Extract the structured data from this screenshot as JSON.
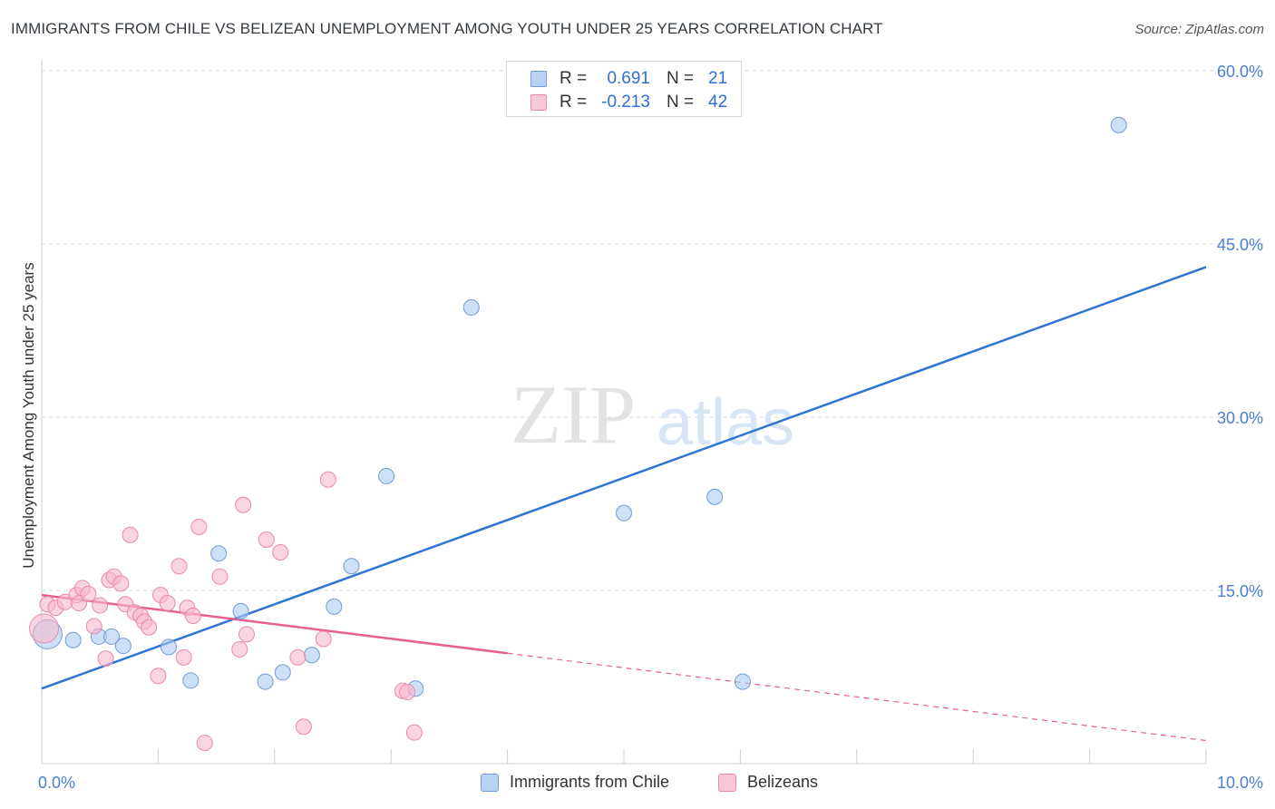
{
  "title": "IMMIGRANTS FROM CHILE VS BELIZEAN UNEMPLOYMENT AMONG YOUTH UNDER 25 YEARS CORRELATION CHART",
  "source": "Source: ZipAtlas.com",
  "watermark": {
    "zip": "ZIP",
    "atlas": "atlas"
  },
  "legend": {
    "r_label": "R =",
    "n_label": "N =",
    "series1": {
      "r": "0.691",
      "n": "21"
    },
    "series2": {
      "r": "-0.213",
      "n": "42"
    }
  },
  "colors": {
    "blue": "#2f73d6",
    "blue_fill": "#aecbf2",
    "pink": "#e8608f",
    "pink_fill": "#f6b8cc",
    "axis_text": "#4a7fd0",
    "grid": "#d9d9d9"
  },
  "chart_data": {
    "type": "scatter",
    "title": "IMMIGRANTS FROM CHILE VS BELIZEAN UNEMPLOYMENT AMONG YOUTH UNDER 25 YEARS CORRELATION CHART",
    "xlabel": "",
    "ylabel": "Unemployment Among Youth under 25 years",
    "xlim": [
      0,
      10
    ],
    "ylim": [
      0,
      60
    ],
    "x_tick_labels": [
      "0.0%",
      "10.0%"
    ],
    "y_tick_labels": [
      "15.0%",
      "30.0%",
      "45.0%",
      "60.0%"
    ],
    "y_ticks": [
      15,
      30,
      45,
      60
    ],
    "legend_position": "top-center",
    "series": [
      {
        "name": "Immigrants from Chile",
        "color": "#2f73d6",
        "points": [
          [
            0.05,
            11.2
          ],
          [
            0.27,
            10.7
          ],
          [
            0.49,
            11.0
          ],
          [
            0.7,
            10.2
          ],
          [
            0.6,
            11.0
          ],
          [
            1.09,
            10.1
          ],
          [
            1.28,
            7.2
          ],
          [
            1.52,
            18.2
          ],
          [
            1.71,
            13.2
          ],
          [
            1.92,
            7.1
          ],
          [
            2.07,
            7.9
          ],
          [
            2.32,
            9.4
          ],
          [
            2.51,
            13.6
          ],
          [
            2.66,
            17.1
          ],
          [
            2.96,
            24.9
          ],
          [
            3.21,
            6.5
          ],
          [
            3.69,
            39.5
          ],
          [
            5.0,
            21.7
          ],
          [
            5.78,
            23.1
          ],
          [
            6.02,
            7.1
          ],
          [
            9.25,
            55.3
          ]
        ],
        "trend": {
          "x": [
            0,
            10
          ],
          "y": [
            6.5,
            43.0
          ],
          "dashed_after_x": null
        }
      },
      {
        "name": "Belizeans",
        "color": "#e8608f",
        "points": [
          [
            0.02,
            11.7
          ],
          [
            0.05,
            13.8
          ],
          [
            0.12,
            13.5
          ],
          [
            0.2,
            14.0
          ],
          [
            0.3,
            14.6
          ],
          [
            0.32,
            13.9
          ],
          [
            0.35,
            15.2
          ],
          [
            0.4,
            14.7
          ],
          [
            0.45,
            11.9
          ],
          [
            0.5,
            13.7
          ],
          [
            0.55,
            9.1
          ],
          [
            0.58,
            15.9
          ],
          [
            0.62,
            16.2
          ],
          [
            0.68,
            15.6
          ],
          [
            0.72,
            13.8
          ],
          [
            0.76,
            19.8
          ],
          [
            0.8,
            13.1
          ],
          [
            0.85,
            12.8
          ],
          [
            0.88,
            12.3
          ],
          [
            0.92,
            11.8
          ],
          [
            1.0,
            7.6
          ],
          [
            1.02,
            14.6
          ],
          [
            1.08,
            13.9
          ],
          [
            1.18,
            17.1
          ],
          [
            1.22,
            9.2
          ],
          [
            1.25,
            13.5
          ],
          [
            1.3,
            12.8
          ],
          [
            1.35,
            20.5
          ],
          [
            1.4,
            1.8
          ],
          [
            1.53,
            16.2
          ],
          [
            1.7,
            9.9
          ],
          [
            1.73,
            22.4
          ],
          [
            1.76,
            11.2
          ],
          [
            1.93,
            19.4
          ],
          [
            2.05,
            18.3
          ],
          [
            2.2,
            9.2
          ],
          [
            2.25,
            3.2
          ],
          [
            2.42,
            10.8
          ],
          [
            2.46,
            24.6
          ],
          [
            3.1,
            6.3
          ],
          [
            3.14,
            6.2
          ],
          [
            3.2,
            2.7
          ]
        ],
        "trend": {
          "x": [
            0,
            10
          ],
          "y": [
            14.6,
            2.0
          ],
          "dashed_after_x": 4.0
        }
      }
    ]
  }
}
